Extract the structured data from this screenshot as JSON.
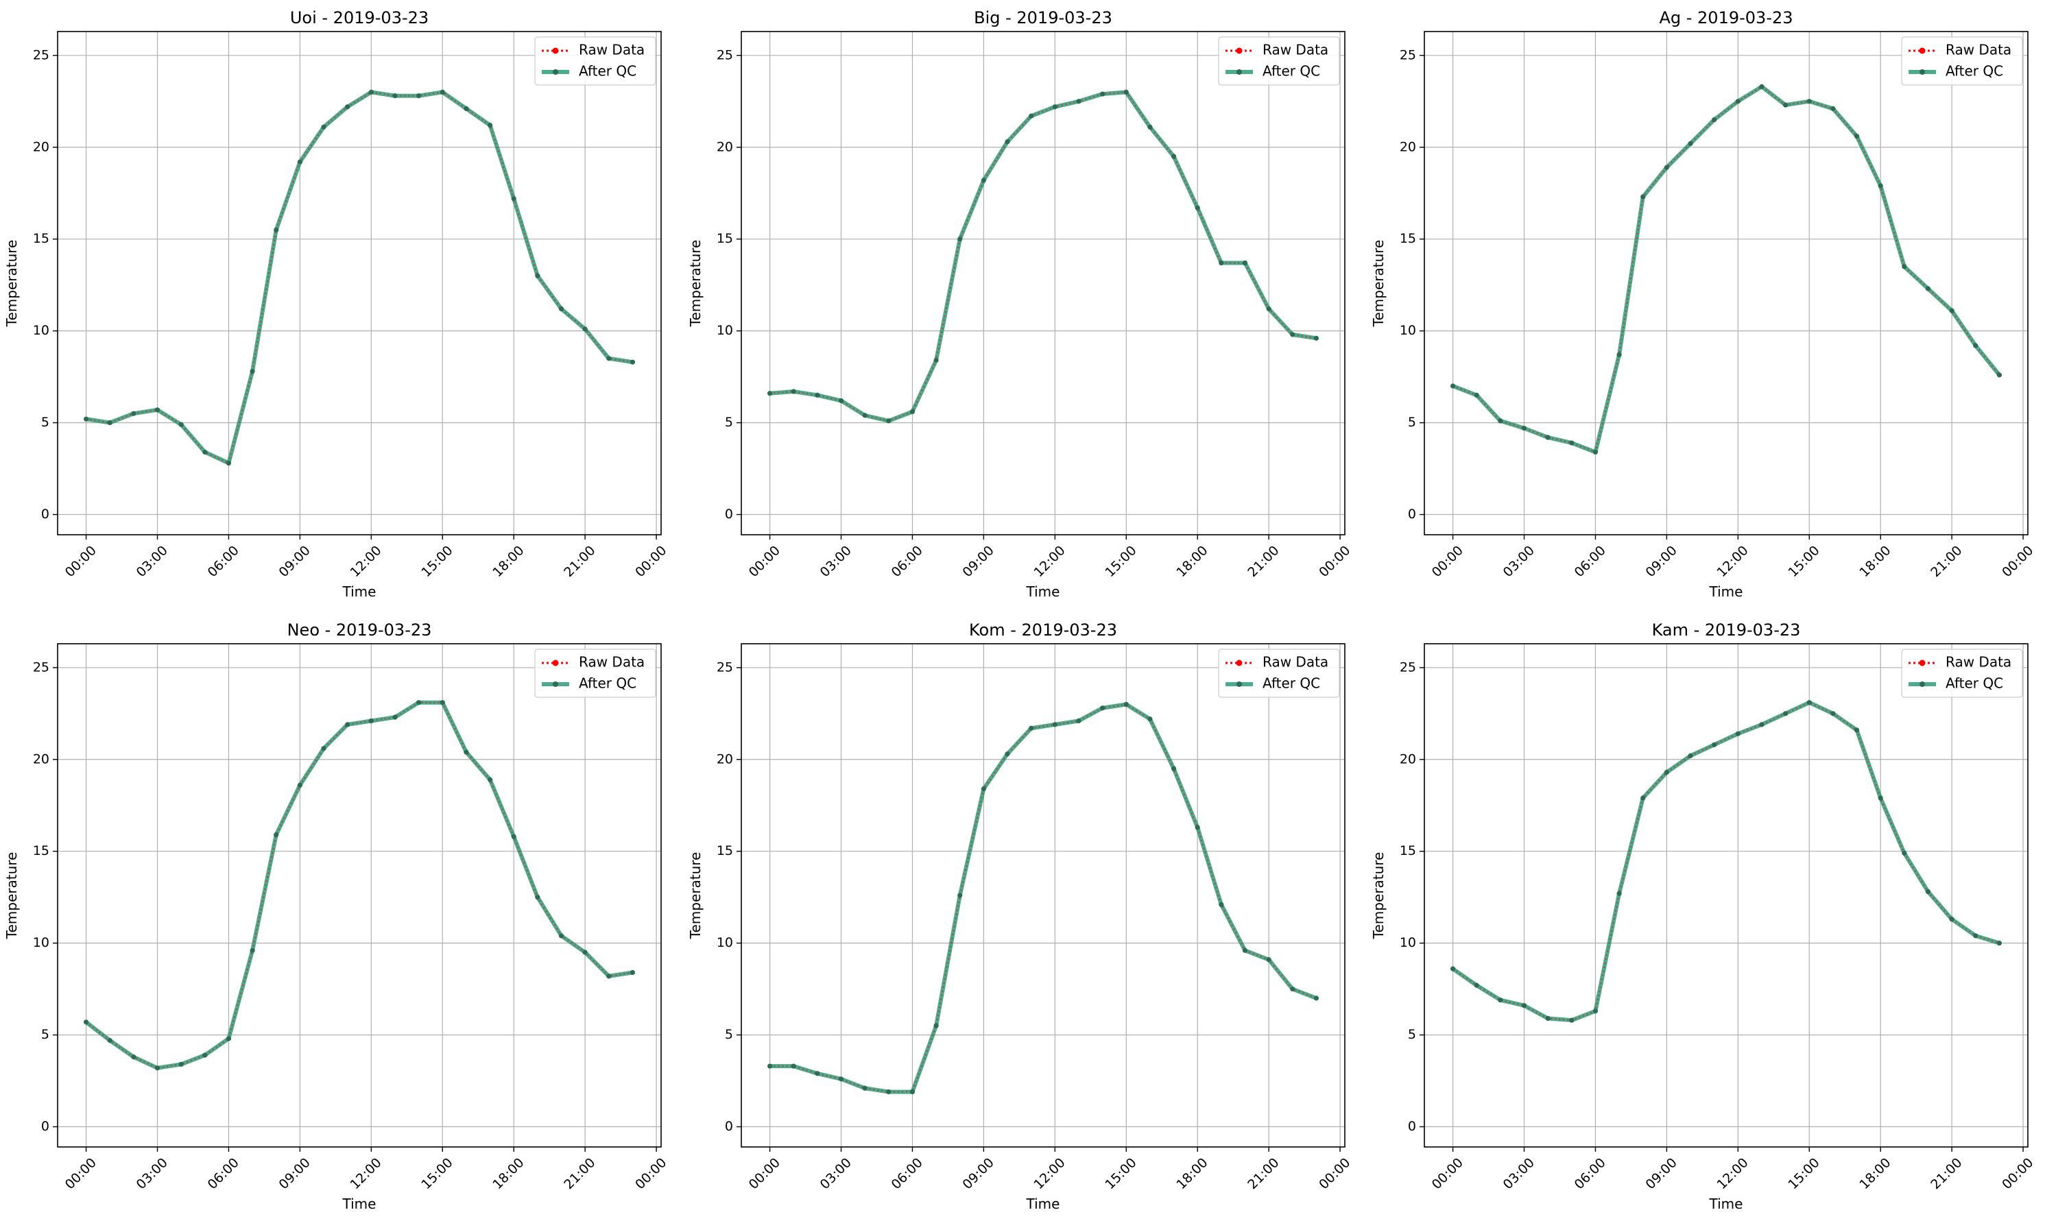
{
  "figure": {
    "colors": {
      "raw": "#ff0000",
      "qc": "#2a9d78",
      "qc_dots": "#2e6b57",
      "grid": "#b0b0b0"
    }
  },
  "chart_data": [
    {
      "type": "line",
      "title": "Uoi - 2019-03-23",
      "xlabel": "Time",
      "ylabel": "Temperature",
      "x_tick_labels": [
        "00:00",
        "03:00",
        "06:00",
        "09:00",
        "12:00",
        "15:00",
        "18:00",
        "21:00",
        "00:00"
      ],
      "y_tick_labels": [
        "0",
        "5",
        "10",
        "15",
        "20",
        "25"
      ],
      "xlim_hours": [
        -1.2,
        24.2
      ],
      "ylim": [
        -1.1,
        26.3
      ],
      "grid": true,
      "legend_position": "top-right",
      "x_hours": [
        0,
        1,
        2,
        3,
        4,
        5,
        6,
        7,
        8,
        9,
        10,
        11,
        12,
        13,
        14,
        15,
        16,
        17,
        18,
        19,
        20,
        21,
        22,
        23
      ],
      "series": [
        {
          "name": "Raw Data",
          "style": "dotted-red-markers",
          "values": [
            5.2,
            5.0,
            5.5,
            5.7,
            4.9,
            3.4,
            2.8,
            7.8,
            15.5,
            19.2,
            21.1,
            22.2,
            23.0,
            22.8,
            22.8,
            23.0,
            22.1,
            21.2,
            17.2,
            13.0,
            11.2,
            10.1,
            8.5,
            8.3
          ]
        },
        {
          "name": "After QC",
          "style": "solid-green-dots",
          "values": [
            5.2,
            5.0,
            5.5,
            5.7,
            4.9,
            3.4,
            2.8,
            7.8,
            15.5,
            19.2,
            21.1,
            22.2,
            23.0,
            22.8,
            22.8,
            23.0,
            22.1,
            21.2,
            17.2,
            13.0,
            11.2,
            10.1,
            8.5,
            8.3
          ]
        }
      ]
    },
    {
      "type": "line",
      "title": "Big - 2019-03-23",
      "xlabel": "Time",
      "ylabel": "Temperature",
      "x_tick_labels": [
        "00:00",
        "03:00",
        "06:00",
        "09:00",
        "12:00",
        "15:00",
        "18:00",
        "21:00",
        "00:00"
      ],
      "y_tick_labels": [
        "0",
        "5",
        "10",
        "15",
        "20",
        "25"
      ],
      "xlim_hours": [
        -1.2,
        24.2
      ],
      "ylim": [
        -1.1,
        26.3
      ],
      "grid": true,
      "legend_position": "top-right",
      "x_hours": [
        0,
        1,
        2,
        3,
        4,
        5,
        6,
        7,
        8,
        9,
        10,
        11,
        12,
        13,
        14,
        15,
        16,
        17,
        18,
        19,
        20,
        21,
        22,
        23
      ],
      "series": [
        {
          "name": "Raw Data",
          "style": "dotted-red-markers",
          "values": [
            6.6,
            6.7,
            6.5,
            6.2,
            5.4,
            5.1,
            5.6,
            8.4,
            15.0,
            18.2,
            20.3,
            21.7,
            22.2,
            22.5,
            22.9,
            23.0,
            21.1,
            19.5,
            16.7,
            13.7,
            13.7,
            11.2,
            9.8,
            9.6
          ]
        },
        {
          "name": "After QC",
          "style": "solid-green-dots",
          "values": [
            6.6,
            6.7,
            6.5,
            6.2,
            5.4,
            5.1,
            5.6,
            8.4,
            15.0,
            18.2,
            20.3,
            21.7,
            22.2,
            22.5,
            22.9,
            23.0,
            21.1,
            19.5,
            16.7,
            13.7,
            13.7,
            11.2,
            9.8,
            9.6
          ]
        }
      ]
    },
    {
      "type": "line",
      "title": "Ag - 2019-03-23",
      "xlabel": "Time",
      "ylabel": "Temperature",
      "x_tick_labels": [
        "00:00",
        "03:00",
        "06:00",
        "09:00",
        "12:00",
        "15:00",
        "18:00",
        "21:00",
        "00:00"
      ],
      "y_tick_labels": [
        "0",
        "5",
        "10",
        "15",
        "20",
        "25"
      ],
      "xlim_hours": [
        -1.2,
        24.2
      ],
      "ylim": [
        -1.1,
        26.3
      ],
      "grid": true,
      "legend_position": "top-right",
      "x_hours": [
        0,
        1,
        2,
        3,
        4,
        5,
        6,
        7,
        8,
        9,
        10,
        11,
        12,
        13,
        14,
        15,
        16,
        17,
        18,
        19,
        20,
        21,
        22,
        23
      ],
      "series": [
        {
          "name": "Raw Data",
          "style": "dotted-red-markers",
          "values": [
            7.0,
            6.5,
            5.1,
            4.7,
            4.2,
            3.9,
            3.4,
            8.7,
            17.3,
            18.9,
            20.2,
            21.5,
            22.5,
            23.3,
            22.3,
            22.5,
            22.1,
            20.6,
            17.9,
            13.5,
            12.3,
            11.1,
            9.2,
            7.6
          ]
        },
        {
          "name": "After QC",
          "style": "solid-green-dots",
          "values": [
            7.0,
            6.5,
            5.1,
            4.7,
            4.2,
            3.9,
            3.4,
            8.7,
            17.3,
            18.9,
            20.2,
            21.5,
            22.5,
            23.3,
            22.3,
            22.5,
            22.1,
            20.6,
            17.9,
            13.5,
            12.3,
            11.1,
            9.2,
            7.6
          ]
        }
      ]
    },
    {
      "type": "line",
      "title": "Neo - 2019-03-23",
      "xlabel": "Time",
      "ylabel": "Temperature",
      "x_tick_labels": [
        "00:00",
        "03:00",
        "06:00",
        "09:00",
        "12:00",
        "15:00",
        "18:00",
        "21:00",
        "00:00"
      ],
      "y_tick_labels": [
        "0",
        "5",
        "10",
        "15",
        "20",
        "25"
      ],
      "xlim_hours": [
        -1.2,
        24.2
      ],
      "ylim": [
        -1.1,
        26.3
      ],
      "grid": true,
      "legend_position": "top-right",
      "x_hours": [
        0,
        1,
        2,
        3,
        4,
        5,
        6,
        7,
        8,
        9,
        10,
        11,
        12,
        13,
        14,
        15,
        16,
        17,
        18,
        19,
        20,
        21,
        22,
        23
      ],
      "series": [
        {
          "name": "Raw Data",
          "style": "dotted-red-markers",
          "values": [
            5.7,
            4.7,
            3.8,
            3.2,
            3.4,
            3.9,
            4.8,
            9.6,
            15.9,
            18.6,
            20.6,
            21.9,
            22.1,
            22.3,
            23.1,
            23.1,
            20.4,
            18.9,
            15.8,
            12.5,
            10.4,
            9.5,
            8.2,
            8.4
          ]
        },
        {
          "name": "After QC",
          "style": "solid-green-dots",
          "values": [
            5.7,
            4.7,
            3.8,
            3.2,
            3.4,
            3.9,
            4.8,
            9.6,
            15.9,
            18.6,
            20.6,
            21.9,
            22.1,
            22.3,
            23.1,
            23.1,
            20.4,
            18.9,
            15.8,
            12.5,
            10.4,
            9.5,
            8.2,
            8.4
          ]
        }
      ]
    },
    {
      "type": "line",
      "title": "Kom - 2019-03-23",
      "xlabel": "Time",
      "ylabel": "Temperature",
      "x_tick_labels": [
        "00:00",
        "03:00",
        "06:00",
        "09:00",
        "12:00",
        "15:00",
        "18:00",
        "21:00",
        "00:00"
      ],
      "y_tick_labels": [
        "0",
        "5",
        "10",
        "15",
        "20",
        "25"
      ],
      "xlim_hours": [
        -1.2,
        24.2
      ],
      "ylim": [
        -1.1,
        26.3
      ],
      "grid": true,
      "legend_position": "top-right",
      "x_hours": [
        0,
        1,
        2,
        3,
        4,
        5,
        6,
        7,
        8,
        9,
        10,
        11,
        12,
        13,
        14,
        15,
        16,
        17,
        18,
        19,
        20,
        21,
        22,
        23
      ],
      "series": [
        {
          "name": "Raw Data",
          "style": "dotted-red-markers",
          "values": [
            3.3,
            3.3,
            2.9,
            2.6,
            2.1,
            1.9,
            1.9,
            5.5,
            12.6,
            18.4,
            20.3,
            21.7,
            21.9,
            22.1,
            22.8,
            23.0,
            22.2,
            19.5,
            16.3,
            12.1,
            9.6,
            9.1,
            7.5,
            7.0
          ]
        },
        {
          "name": "After QC",
          "style": "solid-green-dots",
          "values": [
            3.3,
            3.3,
            2.9,
            2.6,
            2.1,
            1.9,
            1.9,
            5.5,
            12.6,
            18.4,
            20.3,
            21.7,
            21.9,
            22.1,
            22.8,
            23.0,
            22.2,
            19.5,
            16.3,
            12.1,
            9.6,
            9.1,
            7.5,
            7.0
          ]
        }
      ]
    },
    {
      "type": "line",
      "title": "Kam - 2019-03-23",
      "xlabel": "Time",
      "ylabel": "Temperature",
      "x_tick_labels": [
        "00:00",
        "03:00",
        "06:00",
        "09:00",
        "12:00",
        "15:00",
        "18:00",
        "21:00",
        "00:00"
      ],
      "y_tick_labels": [
        "0",
        "5",
        "10",
        "15",
        "20",
        "25"
      ],
      "xlim_hours": [
        -1.2,
        24.2
      ],
      "ylim": [
        -1.1,
        26.3
      ],
      "grid": true,
      "legend_position": "top-right",
      "x_hours": [
        0,
        1,
        2,
        3,
        4,
        5,
        6,
        7,
        8,
        9,
        10,
        11,
        12,
        13,
        14,
        15,
        16,
        17,
        18,
        19,
        20,
        21,
        22,
        23
      ],
      "series": [
        {
          "name": "Raw Data",
          "style": "dotted-red-markers",
          "values": [
            8.6,
            7.7,
            6.9,
            6.6,
            5.9,
            5.8,
            6.3,
            12.7,
            17.9,
            19.3,
            20.2,
            20.8,
            21.4,
            21.9,
            22.5,
            23.1,
            22.5,
            21.6,
            17.9,
            14.9,
            12.8,
            11.3,
            10.4,
            10.0
          ]
        },
        {
          "name": "After QC",
          "style": "solid-green-dots",
          "values": [
            8.6,
            7.7,
            6.9,
            6.6,
            5.9,
            5.8,
            6.3,
            12.7,
            17.9,
            19.3,
            20.2,
            20.8,
            21.4,
            21.9,
            22.5,
            23.1,
            22.5,
            21.6,
            17.9,
            14.9,
            12.8,
            11.3,
            10.4,
            10.0
          ]
        }
      ]
    }
  ]
}
